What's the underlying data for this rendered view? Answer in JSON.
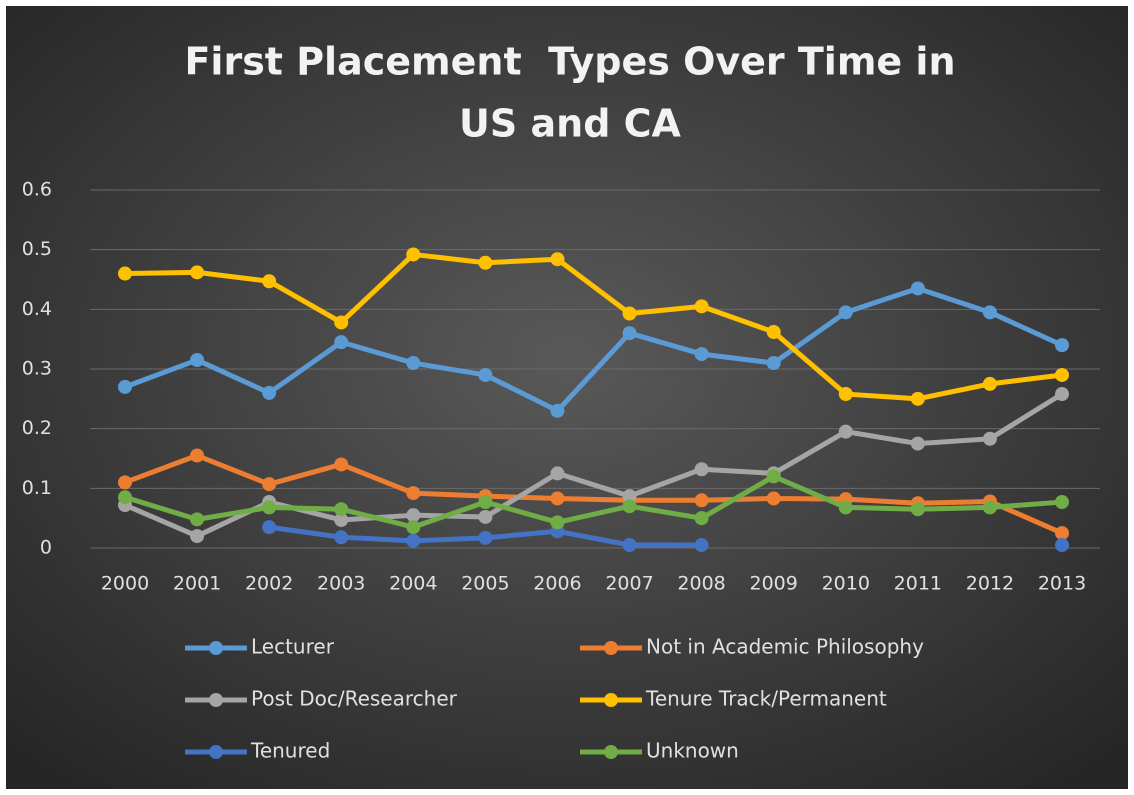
{
  "chart_data": {
    "type": "line",
    "title": [
      "First Placement  Types Over Time in",
      "US and CA"
    ],
    "categories": [
      "2000",
      "2001",
      "2002",
      "2003",
      "2004",
      "2005",
      "2006",
      "2007",
      "2008",
      "2009",
      "2010",
      "2011",
      "2012",
      "2013"
    ],
    "ylim": [
      0,
      0.6
    ],
    "yticks": [
      0,
      0.1,
      0.2,
      0.3,
      0.4,
      0.5,
      0.6
    ],
    "grid": true,
    "legend": "bottom",
    "series": [
      {
        "name": "Lecturer",
        "color": "#5b9bd5",
        "values": [
          0.27,
          0.315,
          0.26,
          0.345,
          0.31,
          0.29,
          0.23,
          0.36,
          0.325,
          0.31,
          0.395,
          0.435,
          0.395,
          0.34
        ]
      },
      {
        "name": "Not in Academic Philosophy",
        "color": "#ed7d31",
        "values": [
          0.11,
          0.155,
          0.107,
          0.14,
          0.092,
          0.087,
          0.083,
          0.08,
          0.08,
          0.083,
          0.082,
          0.075,
          0.078,
          0.025
        ]
      },
      {
        "name": "Post Doc/Researcher",
        "color": "#a5a5a5",
        "values": [
          0.072,
          0.02,
          0.077,
          0.047,
          0.055,
          0.052,
          0.125,
          0.087,
          0.132,
          0.125,
          0.195,
          0.175,
          0.183,
          0.258
        ]
      },
      {
        "name": "Tenure Track/Permanent",
        "color": "#ffc000",
        "values": [
          0.46,
          0.462,
          0.447,
          0.378,
          0.492,
          0.478,
          0.484,
          0.393,
          0.405,
          0.362,
          0.258,
          0.25,
          0.275,
          0.29
        ]
      },
      {
        "name": "Tenured",
        "color": "#4472c4",
        "values": [
          null,
          null,
          0.035,
          0.018,
          0.012,
          0.017,
          0.028,
          0.005,
          0.005,
          null,
          null,
          null,
          null,
          0.005
        ]
      },
      {
        "name": "Unknown",
        "color": "#70ad47",
        "values": [
          0.085,
          0.048,
          0.068,
          0.065,
          0.035,
          0.077,
          0.043,
          0.07,
          0.05,
          0.12,
          0.068,
          0.065,
          0.068,
          0.077
        ]
      }
    ]
  }
}
